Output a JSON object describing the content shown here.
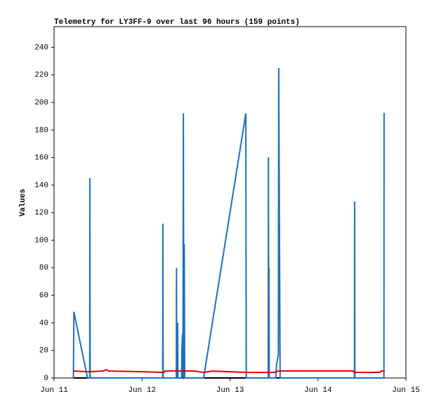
{
  "chart_data": {
    "type": "line",
    "title": "Telemetry for LY3FF-9 over last 96 hours (159 points)",
    "y_label": "Values",
    "xlim": [
      11,
      15
    ],
    "xticks": [
      {
        "value": 11,
        "label": "Jun 11"
      },
      {
        "value": 12,
        "label": "Jun 12"
      },
      {
        "value": 13,
        "label": "Jun 13"
      },
      {
        "value": 14,
        "label": "Jun 14"
      },
      {
        "value": 15,
        "label": "Jun 15"
      }
    ],
    "ylim": [
      0,
      255
    ],
    "yticks": [
      0,
      20,
      40,
      60,
      80,
      100,
      120,
      140,
      160,
      180,
      200,
      220,
      240
    ],
    "grid": false,
    "series": [
      {
        "color": "#000000",
        "x": [
          11.22,
          14.76
        ],
        "values": [
          0,
          0
        ]
      },
      {
        "color": "#1f6fbf",
        "x": [
          11.22,
          11.225,
          11.38,
          11.405,
          11.407,
          11.41,
          12.235,
          12.237,
          12.24,
          12.39,
          12.392,
          12.395,
          12.405,
          12.408,
          12.45,
          12.452,
          12.46,
          12.465,
          12.47,
          12.475,
          12.48,
          12.485,
          12.7,
          13.18,
          13.185,
          13.435,
          13.437,
          13.44,
          13.443,
          13.446,
          13.52,
          13.53,
          13.55,
          13.554,
          13.562,
          13.57,
          14.415,
          14.417,
          14.42,
          14.75,
          14.752,
          14.758
        ],
        "values": [
          0,
          48,
          0,
          0,
          145,
          0,
          0,
          112,
          0,
          0,
          80,
          0,
          40,
          0,
          0,
          17,
          32,
          0,
          192,
          0,
          97,
          0,
          0,
          192,
          0,
          0,
          160,
          0,
          80,
          0,
          0,
          10,
          17,
          225,
          112,
          0,
          0,
          128,
          0,
          0,
          192,
          192
        ]
      },
      {
        "color": "#e00000",
        "x": [
          11.22,
          11.4,
          11.55,
          11.6,
          11.62,
          12.0,
          12.25,
          12.26,
          12.6,
          12.7,
          12.8,
          13.0,
          13.2,
          13.5,
          13.55,
          14.4,
          14.42,
          14.7,
          14.72,
          14.76
        ],
        "values": [
          5,
          4.5,
          5,
          6,
          5,
          4.5,
          4,
          5,
          5,
          4,
          5,
          4.5,
          4,
          4,
          5,
          5,
          4,
          4,
          5,
          5
        ]
      }
    ]
  }
}
